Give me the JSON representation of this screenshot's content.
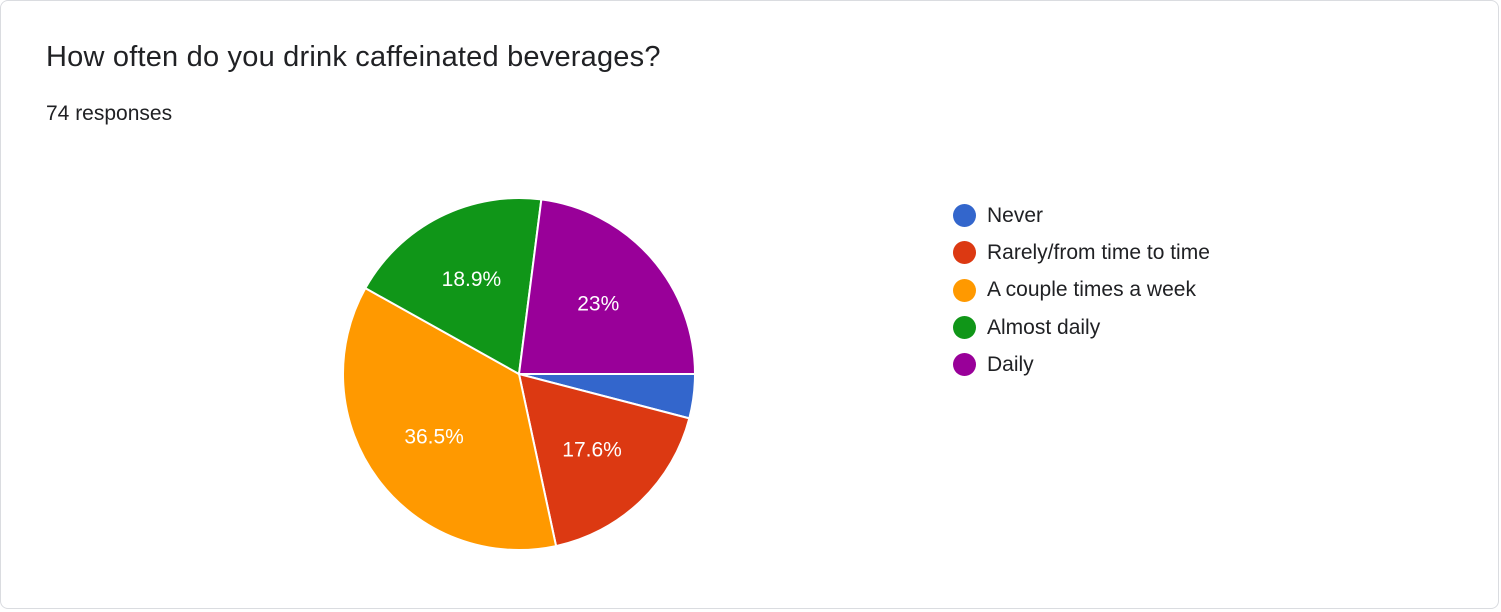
{
  "header": {
    "title": "How often do you drink caffeinated beverages?",
    "subtitle": "74 responses"
  },
  "chart_data": {
    "type": "pie",
    "title": "How often do you drink caffeinated beverages?",
    "total_responses": 74,
    "legend_position": "right",
    "categories": [
      "Never",
      "Rarely/from time to time",
      "A couple times a week",
      "Almost daily",
      "Daily"
    ],
    "values": [
      3,
      13,
      27,
      14,
      17
    ],
    "percent_labels": [
      "",
      "17.6%",
      "36.5%",
      "18.9%",
      "23%"
    ],
    "colors": [
      "#3366cc",
      "#dc3912",
      "#ff9900",
      "#109618",
      "#990099"
    ]
  }
}
